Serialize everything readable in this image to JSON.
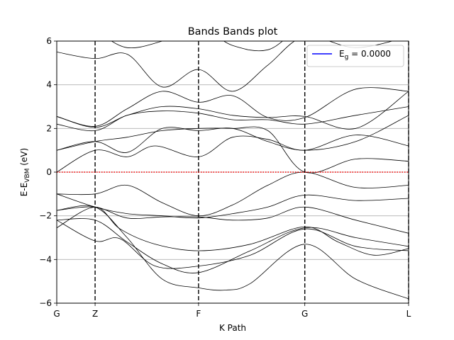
{
  "chart_data": {
    "type": "line",
    "title": "Bands Bands plot",
    "xlabel": "K Path",
    "ylabel": {
      "main": "E-E",
      "sub": "VBM",
      "unit": " (eV)"
    },
    "ylim": [
      -6,
      6
    ],
    "yticks": [
      -6,
      -4,
      -2,
      0,
      2,
      4,
      6
    ],
    "kpoints": [
      {
        "label": "G",
        "x": 0.0
      },
      {
        "label": "Z",
        "x": 0.109
      },
      {
        "label": "F",
        "x": 0.403
      },
      {
        "label": "G",
        "x": 0.705
      },
      {
        "label": "L",
        "x": 1.0
      }
    ],
    "grid": "horizontal",
    "legend": {
      "position": "top-right",
      "label_main": "E",
      "label_sub": "g",
      "label_value": " = 0.0000",
      "color": "#0000ff"
    },
    "fermi_line": {
      "y": 0,
      "color": "#ff0000",
      "style": "dotted"
    },
    "band_color": "#000000",
    "bands": [
      [
        [
          0,
          -2.55
        ],
        [
          0.109,
          -1.6
        ],
        [
          0.18,
          -2.6
        ],
        [
          0.28,
          -3.3
        ],
        [
          0.403,
          -3.6
        ],
        [
          0.55,
          -3.3
        ],
        [
          0.705,
          -2.5
        ],
        [
          0.8,
          -3.2
        ],
        [
          0.9,
          -3.8
        ],
        [
          1.0,
          -3.5
        ]
      ],
      [
        [
          0,
          -2.2
        ],
        [
          0.109,
          -2.2
        ],
        [
          0.2,
          -3.2
        ],
        [
          0.3,
          -4.2
        ],
        [
          0.403,
          -4.6
        ],
        [
          0.55,
          -3.6
        ],
        [
          0.705,
          -2.55
        ],
        [
          0.85,
          -3.0
        ],
        [
          1.0,
          -3.4
        ]
      ],
      [
        [
          0,
          -2.2
        ],
        [
          0.109,
          -3.15
        ],
        [
          0.18,
          -3.05
        ],
        [
          0.28,
          -4.3
        ],
        [
          0.403,
          -4.3
        ],
        [
          0.55,
          -3.8
        ],
        [
          0.705,
          -2.6
        ],
        [
          0.85,
          -3.4
        ],
        [
          1.0,
          -3.6
        ]
      ],
      [
        [
          0,
          -1.75
        ],
        [
          0.109,
          -1.6
        ],
        [
          0.2,
          -3.0
        ],
        [
          0.3,
          -4.9
        ],
        [
          0.403,
          -5.3
        ],
        [
          0.48,
          -5.4
        ],
        [
          0.55,
          -5.1
        ],
        [
          0.705,
          -3.3
        ],
        [
          0.85,
          -4.9
        ],
        [
          1.0,
          -5.8
        ]
      ],
      [
        [
          0,
          -1.75
        ],
        [
          0.109,
          -1.6
        ],
        [
          0.2,
          -2.1
        ],
        [
          0.3,
          -2.05
        ],
        [
          0.403,
          -2.05
        ],
        [
          0.5,
          -2.2
        ],
        [
          0.6,
          -2.1
        ],
        [
          0.705,
          -1.6
        ],
        [
          0.85,
          -2.2
        ],
        [
          1.0,
          -2.8
        ]
      ],
      [
        [
          0,
          -1.0
        ],
        [
          0.109,
          -1.6
        ],
        [
          0.2,
          -1.9
        ],
        [
          0.3,
          -2.0
        ],
        [
          0.403,
          -2.1
        ],
        [
          0.5,
          -1.9
        ],
        [
          0.6,
          -1.6
        ],
        [
          0.705,
          -1.05
        ],
        [
          0.85,
          -1.3
        ],
        [
          1.0,
          -1.2
        ]
      ],
      [
        [
          0,
          -1.0
        ],
        [
          0.109,
          -1.0
        ],
        [
          0.2,
          -0.6
        ],
        [
          0.3,
          -1.4
        ],
        [
          0.403,
          -2.0
        ],
        [
          0.5,
          -1.5
        ],
        [
          0.6,
          -0.6
        ],
        [
          0.705,
          0.0
        ],
        [
          0.85,
          -0.7
        ],
        [
          1.0,
          -0.6
        ]
      ],
      [
        [
          0,
          0.0
        ],
        [
          0.109,
          1.0
        ],
        [
          0.2,
          0.7
        ],
        [
          0.28,
          1.2
        ],
        [
          0.403,
          0.7
        ],
        [
          0.5,
          1.6
        ],
        [
          0.6,
          1.5
        ],
        [
          0.705,
          1.0
        ],
        [
          0.85,
          1.7
        ],
        [
          1.0,
          1.2
        ]
      ],
      [
        [
          0,
          1.0
        ],
        [
          0.109,
          1.4
        ],
        [
          0.2,
          0.9
        ],
        [
          0.3,
          2.0
        ],
        [
          0.403,
          1.9
        ],
        [
          0.5,
          2.0
        ],
        [
          0.6,
          1.4
        ],
        [
          0.705,
          1.0
        ],
        [
          0.85,
          1.4
        ],
        [
          1.0,
          2.6
        ]
      ],
      [
        [
          0,
          1.0
        ],
        [
          0.109,
          1.4
        ],
        [
          0.2,
          1.6
        ],
        [
          0.3,
          1.9
        ],
        [
          0.403,
          2.0
        ],
        [
          0.5,
          2.0
        ],
        [
          0.6,
          1.9
        ],
        [
          0.705,
          0.0
        ],
        [
          0.85,
          0.6
        ],
        [
          1.0,
          0.5
        ]
      ],
      [
        [
          0,
          2.2
        ],
        [
          0.109,
          1.9
        ],
        [
          0.2,
          2.6
        ],
        [
          0.3,
          2.8
        ],
        [
          0.403,
          2.7
        ],
        [
          0.5,
          2.4
        ],
        [
          0.6,
          2.4
        ],
        [
          0.705,
          2.2
        ],
        [
          0.85,
          2.6
        ],
        [
          1.0,
          3.0
        ]
      ],
      [
        [
          0,
          2.55
        ],
        [
          0.109,
          2.05
        ],
        [
          0.2,
          2.6
        ],
        [
          0.3,
          3.0
        ],
        [
          0.403,
          2.9
        ],
        [
          0.5,
          2.6
        ],
        [
          0.6,
          2.5
        ],
        [
          0.705,
          2.55
        ],
        [
          0.85,
          2.0
        ],
        [
          1.0,
          3.7
        ]
      ],
      [
        [
          0,
          2.55
        ],
        [
          0.109,
          2.1
        ],
        [
          0.2,
          2.9
        ],
        [
          0.3,
          3.7
        ],
        [
          0.403,
          3.2
        ],
        [
          0.5,
          3.5
        ],
        [
          0.6,
          2.5
        ],
        [
          0.705,
          2.5
        ],
        [
          0.85,
          3.8
        ],
        [
          1.0,
          3.7
        ]
      ],
      [
        [
          0,
          5.5
        ],
        [
          0.109,
          5.2
        ],
        [
          0.2,
          5.4
        ],
        [
          0.3,
          3.9
        ],
        [
          0.403,
          4.7
        ],
        [
          0.5,
          3.7
        ],
        [
          0.6,
          4.9
        ],
        [
          0.705,
          6.2
        ],
        [
          0.85,
          5.7
        ],
        [
          1.0,
          6.2
        ]
      ],
      [
        [
          0,
          6.8
        ],
        [
          0.109,
          6.4
        ],
        [
          0.2,
          5.7
        ],
        [
          0.3,
          6.0
        ],
        [
          0.403,
          6.6
        ],
        [
          0.5,
          5.8
        ],
        [
          0.6,
          5.6
        ],
        [
          0.705,
          6.6
        ],
        [
          0.85,
          6.4
        ],
        [
          1.0,
          6.8
        ]
      ]
    ]
  }
}
